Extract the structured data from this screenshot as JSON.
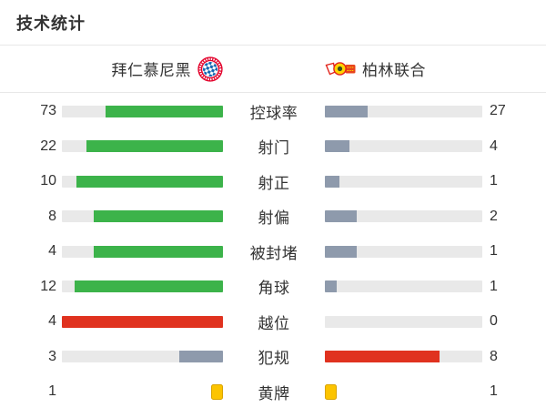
{
  "title": "技术统计",
  "teams": {
    "home": {
      "name": "拜仁慕尼黑",
      "logo": "bayern-munich-crest"
    },
    "away": {
      "name": "柏林联合",
      "logo": "union-berlin-crest"
    }
  },
  "colors": {
    "green": "#3cb34a",
    "gray_blue": "#8e9aac",
    "red": "#e0321f",
    "track": "#e9e9e9",
    "card_fill": "#fcc400",
    "card_border": "#d9a300",
    "divider": "#e8e8e8",
    "text": "#333333"
  },
  "stats": [
    {
      "label": "控球率",
      "home": 73,
      "away": 27,
      "home_color": "green",
      "away_color": "gray_blue",
      "type": "bar"
    },
    {
      "label": "射门",
      "home": 22,
      "away": 4,
      "home_color": "green",
      "away_color": "gray_blue",
      "type": "bar"
    },
    {
      "label": "射正",
      "home": 10,
      "away": 1,
      "home_color": "green",
      "away_color": "gray_blue",
      "type": "bar"
    },
    {
      "label": "射偏",
      "home": 8,
      "away": 2,
      "home_color": "green",
      "away_color": "gray_blue",
      "type": "bar"
    },
    {
      "label": "被封堵",
      "home": 4,
      "away": 1,
      "home_color": "green",
      "away_color": "gray_blue",
      "type": "bar"
    },
    {
      "label": "角球",
      "home": 12,
      "away": 1,
      "home_color": "green",
      "away_color": "gray_blue",
      "type": "bar"
    },
    {
      "label": "越位",
      "home": 4,
      "away": 0,
      "home_color": "red",
      "away_color": "gray_blue",
      "type": "bar"
    },
    {
      "label": "犯规",
      "home": 3,
      "away": 8,
      "home_color": "gray_blue",
      "away_color": "red",
      "type": "bar"
    },
    {
      "label": "黄牌",
      "home": 1,
      "away": 1,
      "home_color": "yellow",
      "away_color": "yellow",
      "type": "cards"
    }
  ],
  "chart_data": {
    "type": "bar",
    "title": "技术统计",
    "orientation": "horizontal-paired",
    "categories": [
      "控球率",
      "射门",
      "射正",
      "射偏",
      "被封堵",
      "角球",
      "越位",
      "犯规",
      "黄牌"
    ],
    "series": [
      {
        "name": "拜仁慕尼黑",
        "values": [
          73,
          22,
          10,
          8,
          4,
          12,
          4,
          3,
          1
        ]
      },
      {
        "name": "柏林联合",
        "values": [
          27,
          4,
          1,
          2,
          1,
          1,
          0,
          8,
          1
        ]
      }
    ],
    "legend_position": "top",
    "grid": false,
    "scaling": "each row bar fill = value / (home value + away value); home bars anchored right, away bars anchored left",
    "bar_colors": {
      "home_leading_good_stat": "#3cb34a",
      "leading_bad_stat": "#e0321f",
      "trailing_side": "#8e9aac",
      "yellow_card_icon": "#fcc400"
    }
  }
}
